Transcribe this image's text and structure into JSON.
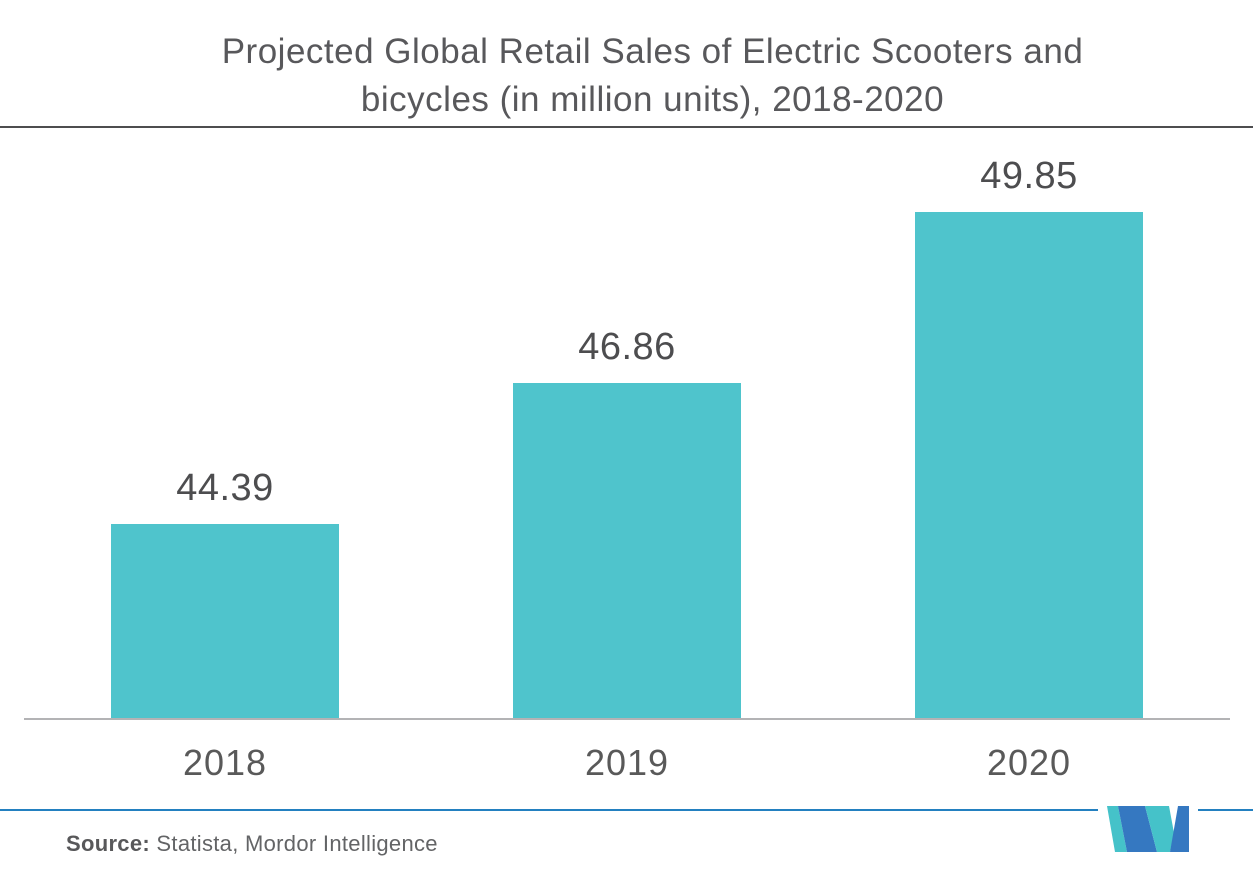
{
  "title": {
    "line1": "Projected Global Retail Sales of Electric Scooters and",
    "line2": "bicycles (in million units), 2018-2020"
  },
  "chart_data": {
    "type": "bar",
    "title": "Projected Global Retail Sales of Electric Scooters and bicycles (in million units), 2018-2020",
    "categories": [
      "2018",
      "2019",
      "2020"
    ],
    "values": [
      44.39,
      46.86,
      49.85
    ],
    "value_labels": [
      "44.39",
      "46.86",
      "49.85"
    ],
    "xlabel": "",
    "ylabel": "",
    "ylim": [
      41,
      51
    ],
    "grid": false,
    "legend_position": "none",
    "bar_color": "#4fc4cc"
  },
  "footer": {
    "source_label": "Source:",
    "source_text": " Statista, Mordor Intelligence"
  },
  "colors": {
    "title_text": "#58585b",
    "label_text": "#4d4d4f",
    "axis_line": "#b3b3b5",
    "title_divider": "#4d4d4f",
    "footer_line": "#2380c0",
    "logo_teal": "#45c2c9",
    "logo_blue": "#3578c1"
  },
  "logo": {
    "name": "Mordor Intelligence"
  }
}
